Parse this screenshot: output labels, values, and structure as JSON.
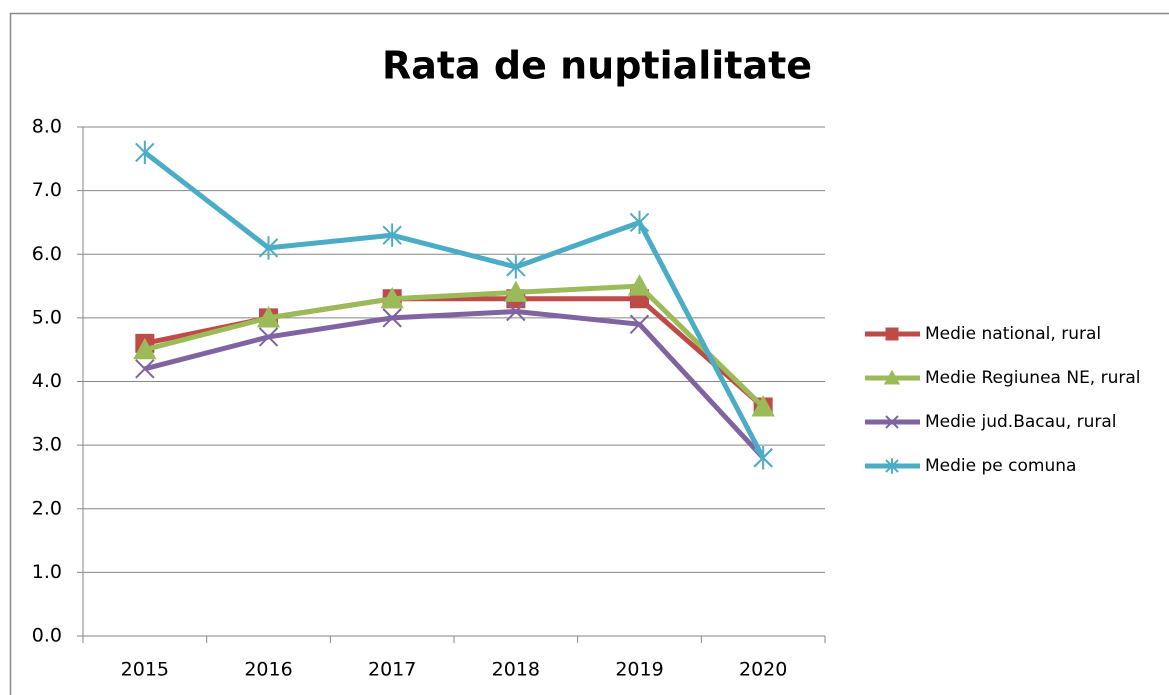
{
  "chart_data": {
    "type": "line",
    "title": "Rata de nuptialitate",
    "categories": [
      "2015",
      "2016",
      "2017",
      "2018",
      "2019",
      "2020"
    ],
    "series": [
      {
        "name": "Medie national, rural",
        "color": "#be4b48",
        "marker": "square",
        "values": [
          4.6,
          5.0,
          5.3,
          5.3,
          5.3,
          3.6
        ]
      },
      {
        "name": "Medie Regiunea NE, rural",
        "color": "#9bbb59",
        "marker": "triangle",
        "values": [
          4.5,
          5.0,
          5.3,
          5.4,
          5.5,
          3.6
        ]
      },
      {
        "name": "Medie jud.Bacau, rural",
        "color": "#8064a2",
        "marker": "x",
        "values": [
          4.2,
          4.7,
          5.0,
          5.1,
          4.9,
          2.8
        ]
      },
      {
        "name": "Medie pe comuna",
        "color": "#4bacc6",
        "marker": "star",
        "values": [
          7.6,
          6.1,
          6.3,
          5.8,
          6.5,
          2.8
        ]
      }
    ],
    "ylim": [
      0,
      8
    ],
    "yticks": [
      {
        "value": 0,
        "label": "0.0"
      },
      {
        "value": 1,
        "label": "1.0"
      },
      {
        "value": 2,
        "label": "2.0"
      },
      {
        "value": 3,
        "label": "3.0"
      },
      {
        "value": 4,
        "label": "4.0"
      },
      {
        "value": 5,
        "label": "5.0"
      },
      {
        "value": 6,
        "label": "6.0"
      },
      {
        "value": 7,
        "label": "7.0"
      },
      {
        "value": 8,
        "label": "8.0"
      }
    ],
    "grid": true,
    "legend": "right"
  }
}
